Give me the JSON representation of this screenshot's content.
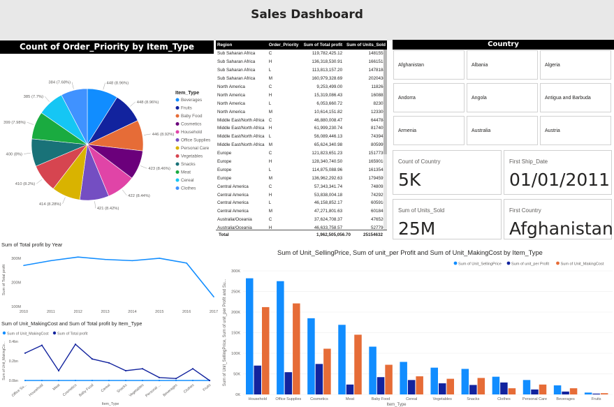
{
  "header": {
    "title": "Sales Dashboard"
  },
  "pie": {
    "title": "Count of Order_Priority by Item_Type",
    "legend_title": "Item_Type",
    "items": [
      {
        "name": "Beverages",
        "value": 448,
        "label": "448 (8.96%)",
        "color": "#118DFF"
      },
      {
        "name": "Fruits",
        "value": 448,
        "label": "448 (8.96%)",
        "color": "#12239E"
      },
      {
        "name": "Baby Food",
        "value": 446,
        "label": "446 (8.92%)",
        "color": "#E66C37"
      },
      {
        "name": "Cosmetics",
        "value": 423,
        "label": "423 (8.46%)",
        "color": "#6B007B"
      },
      {
        "name": "Household",
        "value": 422,
        "label": "422 (8.44%)",
        "color": "#E044A7"
      },
      {
        "name": "Office Supplies",
        "value": 421,
        "label": "421 (8.42%)",
        "color": "#744EC2"
      },
      {
        "name": "Personal Care",
        "value": 414,
        "label": "414 (8.28%)",
        "color": "#D9B300"
      },
      {
        "name": "Vegetables",
        "value": 410,
        "label": "410 (8.2%)",
        "color": "#D64550"
      },
      {
        "name": "Snacks",
        "value": 400,
        "label": "400 (8%)",
        "color": "#197278"
      },
      {
        "name": "Meat",
        "value": 399,
        "label": "399 (7.98%)",
        "color": "#1AAB40"
      },
      {
        "name": "Cereal",
        "value": 385,
        "label": "385 (7.7%)",
        "color": "#15C6F4"
      },
      {
        "name": "Clothes",
        "value": 384,
        "label": "384 (7.68%)",
        "color": "#4092FF"
      }
    ]
  },
  "table": {
    "columns": [
      "Region",
      "Order_Priority",
      "Sum of Total profit",
      "Sum of Units_Sold"
    ],
    "rows": [
      [
        "Sub Saharan Africa",
        "C",
        "119,782,425.12",
        "1481555"
      ],
      [
        "Sub Saharan Africa",
        "H",
        "136,318,530.91",
        "1661515"
      ],
      [
        "Sub Saharan Africa",
        "L",
        "113,813,157.20",
        "1478184"
      ],
      [
        "Sub Saharan Africa",
        "M",
        "160,979,328.69",
        "2020430"
      ],
      [
        "North America",
        "C",
        "9,253,499.00",
        "118264"
      ],
      [
        "North America",
        "H",
        "15,319,086.43",
        "160883"
      ],
      [
        "North America",
        "L",
        "6,053,660.72",
        "82307"
      ],
      [
        "North America",
        "M",
        "10,614,151.82",
        "123306"
      ],
      [
        "Middle East/North Africa",
        "C",
        "46,880,008.47",
        "644784"
      ],
      [
        "Middle East/North Africa",
        "H",
        "61,999,230.74",
        "817409"
      ],
      [
        "Middle East/North Africa",
        "L",
        "56,089,446.13",
        "743947"
      ],
      [
        "Middle East/North Africa",
        "M",
        "65,624,340.98",
        "805999"
      ],
      [
        "Europe",
        "C",
        "121,823,651.23",
        "1517739"
      ],
      [
        "Europe",
        "H",
        "128,340,740.50",
        "1659016"
      ],
      [
        "Europe",
        "L",
        "114,875,088.96",
        "1613548"
      ],
      [
        "Europe",
        "M",
        "136,962,292.63",
        "1794599"
      ],
      [
        "Central America",
        "C",
        "57,343,341.74",
        "748092"
      ],
      [
        "Central America",
        "H",
        "53,838,004.18",
        "742929"
      ],
      [
        "Central America",
        "L",
        "46,158,852.17",
        "605910"
      ],
      [
        "Central America",
        "M",
        "47,271,801.63",
        "601845"
      ],
      [
        "Australia/Oceania",
        "C",
        "37,624,708.37",
        "476520"
      ],
      [
        "Australia/Oceania",
        "H",
        "46,633,758.57",
        "527796"
      ]
    ],
    "total": [
      "Total",
      "",
      "1,962,505,056.70",
      "25154632"
    ]
  },
  "slicer": {
    "title": "Country",
    "items": [
      "Afghanistan",
      "Albania",
      "Algeria",
      "Andorra",
      "Angola",
      "Antigua and Barbuda",
      "Armenia",
      "Australia",
      "Austria"
    ]
  },
  "cards": [
    {
      "label": "Count of Country",
      "value": "5K"
    },
    {
      "label": "First Ship_Date",
      "value": "01/01/2011"
    },
    {
      "label": "Sum of Units_Sold",
      "value": "25M"
    },
    {
      "label": "First Country",
      "value": "Afghanistan"
    }
  ],
  "chart_data": [
    {
      "type": "line",
      "title": "Sum of Total profit by Year",
      "ylabel": "Sum of Total profit",
      "x": [
        2010,
        2011,
        2012,
        2013,
        2014,
        2015,
        2016,
        2017
      ],
      "series": [
        {
          "name": "Sum of Total profit",
          "values": [
            270000000,
            290000000,
            305000000,
            295000000,
            290000000,
            300000000,
            280000000,
            140000000
          ]
        }
      ],
      "yticks": [
        "300M",
        "200M",
        "100M"
      ],
      "xticks": [
        "2010",
        "2011",
        "2012",
        "2013",
        "2014",
        "2015",
        "2016",
        "2017"
      ],
      "ylim": [
        100000000,
        320000000
      ]
    },
    {
      "type": "line",
      "title": "Sum of Unit_MakingCost and Sum of Total profit by Item_Type",
      "xlabel": "Item_Type",
      "ylabel": "Sum of Unit_MakingCo...",
      "categories": [
        "Office Su...",
        "Household",
        "Meat",
        "Cosmetics",
        "Baby Food",
        "Cereal",
        "Snacks",
        "Vegetables",
        "Personal ...",
        "Beverages",
        "Clothes",
        "Fruits"
      ],
      "series": [
        {
          "name": "Sum of Unit_MakingCost",
          "color": "#118DFF",
          "values": [
            0.0,
            0.0,
            0.0,
            0.0,
            0.0,
            0.0,
            0.0,
            0.0,
            0.0,
            0.0,
            0.0,
            0.0
          ]
        },
        {
          "name": "Sum of Total profit",
          "color": "#12239E",
          "values": [
            0.28,
            0.36,
            0.1,
            0.37,
            0.22,
            0.18,
            0.1,
            0.12,
            0.03,
            0.02,
            0.12,
            0.0
          ]
        }
      ],
      "yticks": [
        "0.4bn",
        "0.2bn",
        "0.0bn"
      ],
      "ylim": [
        0,
        0.4
      ]
    },
    {
      "type": "bar",
      "title": "Sum of Unit_SellingPrice, Sum of unit_per Profit and Sum of Unit_MakingCost by Item_Type",
      "xlabel": "Item_Type",
      "ylabel": "Sum of Unit_SellingPrice, Sum of unit_per Profit and Su...",
      "categories": [
        "Household",
        "Office Supplies",
        "Cosmetics",
        "Meat",
        "Baby Food",
        "Cereal",
        "Vegetables",
        "Snacks",
        "Clothes",
        "Personal Care",
        "Beverages",
        "Fruits"
      ],
      "series": [
        {
          "name": "Sum of Unit_SellingPrice",
          "color": "#118DFF",
          "values": [
            282000,
            275000,
            185000,
            169000,
            116000,
            79000,
            65000,
            62000,
            43000,
            35000,
            22000,
            4500
          ]
        },
        {
          "name": "Sum of unit_per Profit",
          "color": "#12239E",
          "values": [
            70000,
            54000,
            74000,
            24000,
            42000,
            35000,
            27000,
            23000,
            29000,
            12000,
            7000,
            2000
          ]
        },
        {
          "name": "Sum of Unit_MakingCost",
          "color": "#E66C37",
          "values": [
            212000,
            221000,
            111000,
            145000,
            72000,
            44000,
            38000,
            40000,
            15000,
            24000,
            15000,
            3000
          ]
        }
      ],
      "yticks": [
        "300K",
        "250K",
        "200K",
        "150K",
        "100K",
        "50K",
        "0K"
      ],
      "ylim": [
        0,
        300000
      ]
    }
  ]
}
